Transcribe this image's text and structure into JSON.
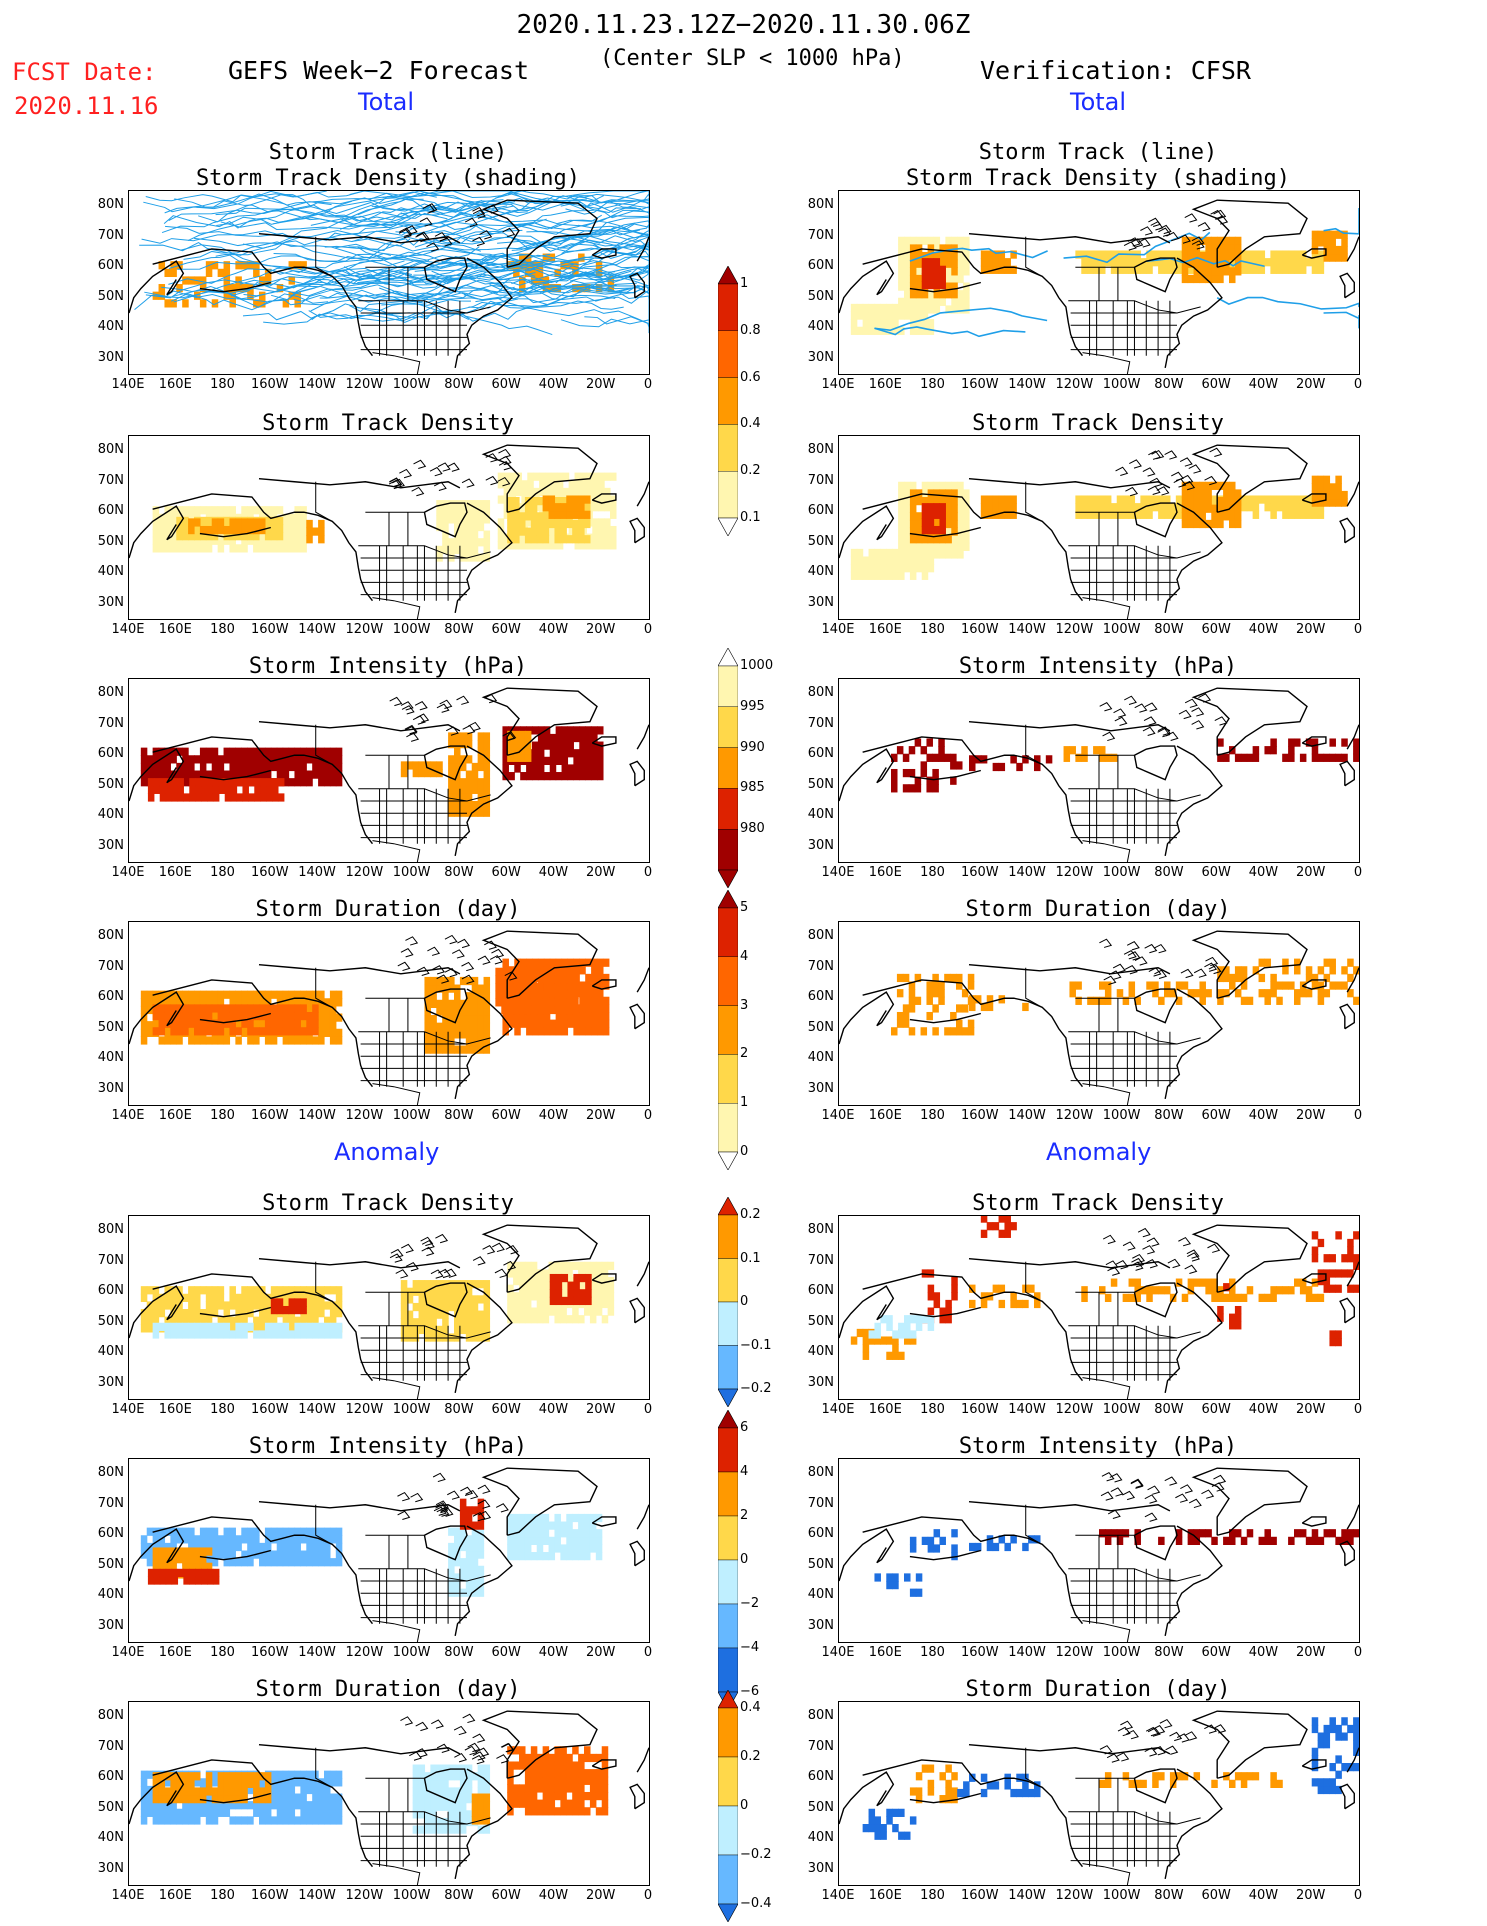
{
  "header": {
    "period": "2020.11.23.12Z−2020.11.30.06Z",
    "criteria": "(Center SLP < 1000 hPa)",
    "fcst_label": "FCST Date:",
    "fcst_date": "2020.11.16",
    "left_title": "GEFS Week−2 Forecast",
    "right_title": "Verification: CFSR",
    "total_label": "Total",
    "anomaly_label": "Anomaly"
  },
  "panel_titles": {
    "track_line": "Storm Track (line)",
    "track_density_shading": "Storm Track Density (shading)",
    "track_density": "Storm Track Density",
    "intensity": "Storm Intensity (hPa)",
    "duration": "Storm Duration (day)"
  },
  "axes": {
    "lat_ticks": [
      "80N",
      "70N",
      "60N",
      "50N",
      "40N",
      "30N"
    ],
    "lon_ticks": [
      "140E",
      "160E",
      "180",
      "160W",
      "140W",
      "120W",
      "100W",
      "80W",
      "60W",
      "40W",
      "20W",
      "0"
    ]
  },
  "colorbars": {
    "density_total": [
      "1",
      "0.8",
      "0.6",
      "0.4",
      "0.2",
      "0.1"
    ],
    "intensity_total": [
      "1000",
      "995",
      "990",
      "985",
      "980"
    ],
    "duration_total": [
      "5",
      "4",
      "3",
      "2",
      "1",
      "0"
    ],
    "density_anom": [
      "0.2",
      "0.1",
      "0",
      "−0.1",
      "−0.2"
    ],
    "intensity_anom": [
      "6",
      "4",
      "2",
      "0",
      "−2",
      "−4",
      "−6"
    ],
    "duration_anom": [
      "0.4",
      "0.2",
      "0",
      "−0.2",
      "−0.4"
    ]
  },
  "colors": {
    "pale_yellow": "#fff6b0",
    "yellow": "#ffd84a",
    "orange": "#ff9900",
    "dark_orange": "#ff6600",
    "red": "#dd2200",
    "dark_red": "#a00000",
    "light_blue": "#bfefff",
    "mid_blue": "#66b8ff",
    "blue": "#1e6fe0",
    "track_line": "#1f9fe8"
  }
}
